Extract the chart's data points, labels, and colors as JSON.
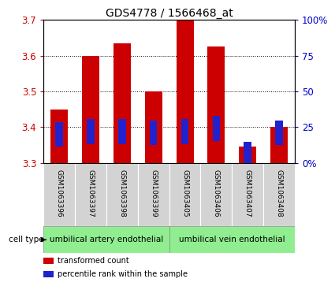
{
  "title": "GDS4778 / 1566468_at",
  "samples": [
    "GSM1063396",
    "GSM1063397",
    "GSM1063398",
    "GSM1063399",
    "GSM1063405",
    "GSM1063406",
    "GSM1063407",
    "GSM1063408"
  ],
  "transformed_counts": [
    3.45,
    3.6,
    3.635,
    3.5,
    3.7,
    3.625,
    3.345,
    3.4
  ],
  "percentile_ranks": [
    20,
    22,
    22,
    21,
    22,
    24,
    6,
    21
  ],
  "ylim": [
    3.3,
    3.7
  ],
  "yticks": [
    3.3,
    3.4,
    3.5,
    3.6,
    3.7
  ],
  "y2lim": [
    0,
    100
  ],
  "y2ticks": [
    0,
    25,
    50,
    75,
    100
  ],
  "y2labels": [
    "0",
    "25",
    "50",
    "75",
    "100%"
  ],
  "bar_bottom": 3.3,
  "bar_color": "#cc0000",
  "percentile_color": "#2222cc",
  "bar_width": 0.55,
  "percentile_marker_size": 5,
  "cell_types": [
    {
      "label": "umbilical artery endothelial",
      "start": 0,
      "end": 3,
      "color": "#90ee90"
    },
    {
      "label": "umbilical vein endothelial",
      "start": 4,
      "end": 7,
      "color": "#90ee90"
    }
  ],
  "cell_type_label": "cell type",
  "legend_items": [
    {
      "label": "transformed count",
      "color": "#cc0000"
    },
    {
      "label": "percentile rank within the sample",
      "color": "#2222cc"
    }
  ],
  "background_color": "#ffffff",
  "plot_bg_color": "#ffffff",
  "tick_label_color_left": "#cc0000",
  "tick_label_color_right": "#0000cc",
  "grid_color": "#000000",
  "sample_box_color": "#d3d3d3",
  "title_fontsize": 10
}
